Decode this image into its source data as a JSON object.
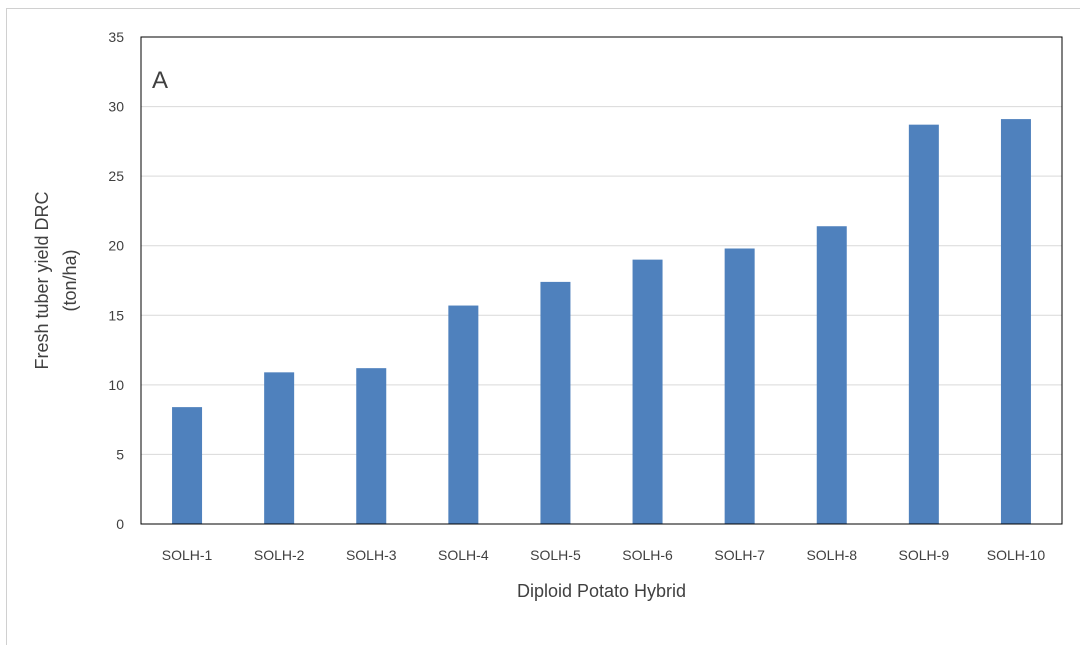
{
  "chart_data": {
    "type": "bar",
    "panel_label": "A",
    "categories": [
      "SOLH-1",
      "SOLH-2",
      "SOLH-3",
      "SOLH-4",
      "SOLH-5",
      "SOLH-6",
      "SOLH-7",
      "SOLH-8",
      "SOLH-9",
      "SOLH-10"
    ],
    "values": [
      8.4,
      10.9,
      11.2,
      15.7,
      17.4,
      19.0,
      19.8,
      21.4,
      28.7,
      29.1
    ],
    "xlabel": "Diploid Potato Hybrid",
    "ylabel_lines": [
      "Fresh tuber yield DRC",
      "(ton/ha)"
    ],
    "ylim": [
      0,
      35
    ],
    "yticks": [
      "0",
      "5",
      "10",
      "15",
      "20",
      "25",
      "30",
      "35"
    ],
    "grid": "horizontal",
    "bar_color": "#4f81bd",
    "grid_color": "#d9d9d9",
    "frame_color": "#000000",
    "text_color": "#404040"
  }
}
